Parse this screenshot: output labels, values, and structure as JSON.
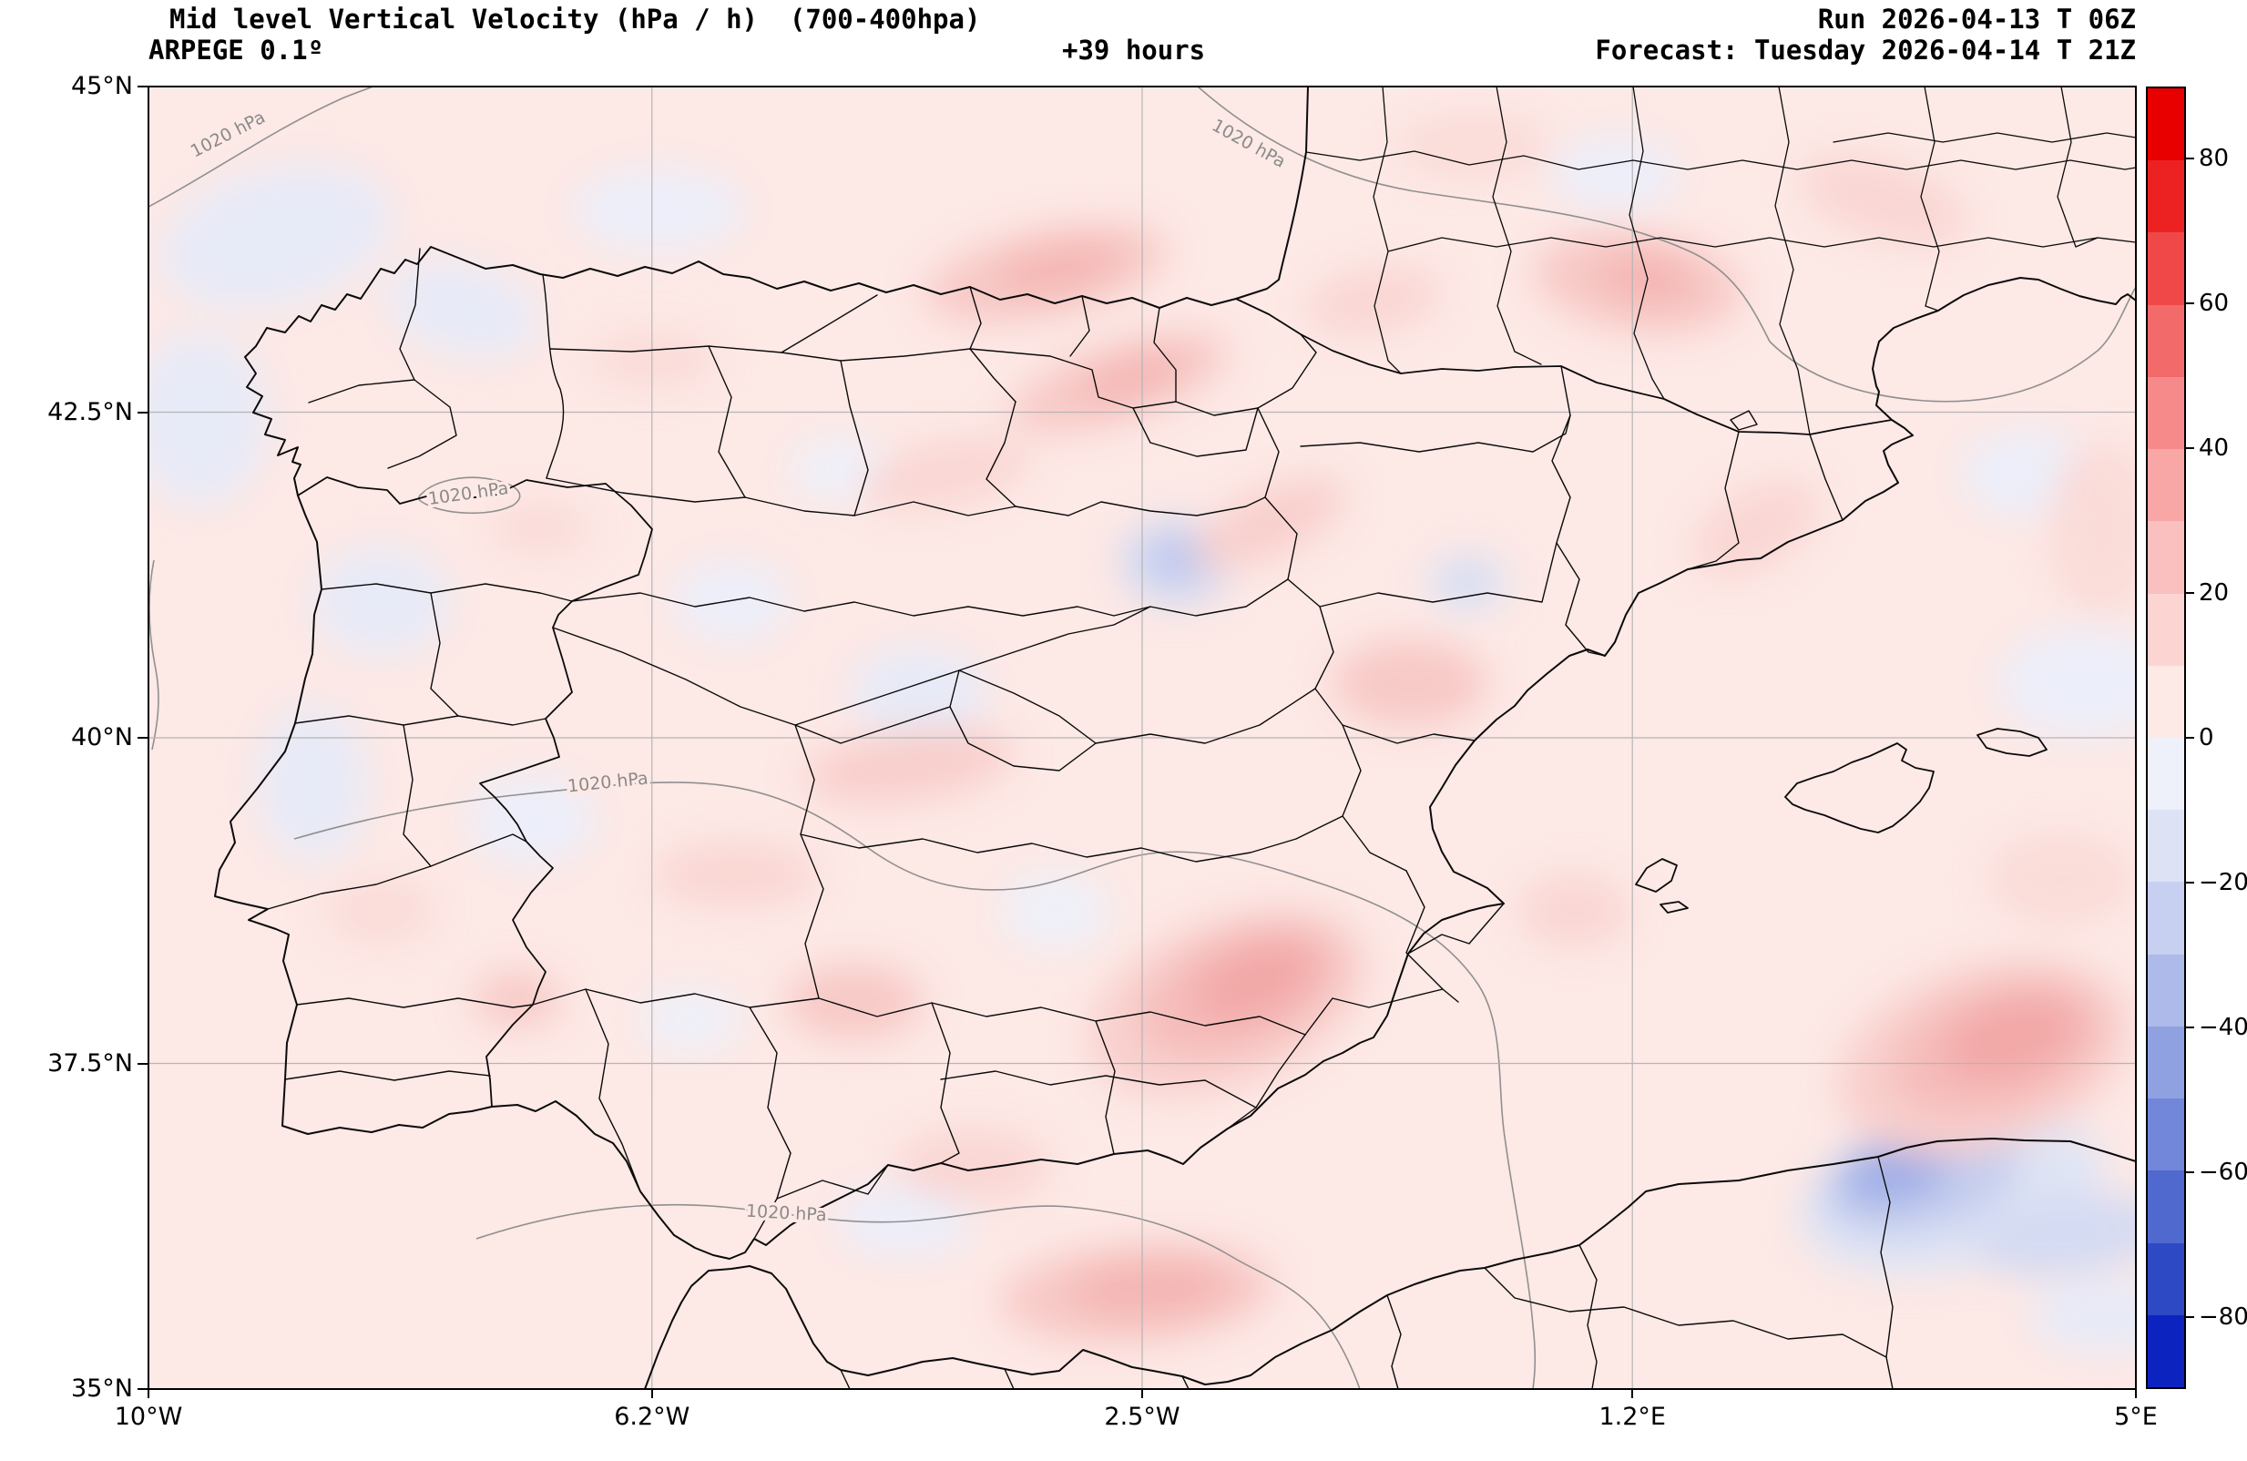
{
  "header": {
    "title_line1": "Mid level Vertical Velocity (hPa / h)  (700-400hpa)",
    "model_line": "ARPEGE 0.1º",
    "hours_line": "+39 hours",
    "run_line": "Run 2026-04-13 T 06Z",
    "forecast_line": "Forecast: Tuesday 2026-04-14 T 21Z"
  },
  "axes": {
    "lon_range": [
      -10,
      5
    ],
    "lat_range": [
      35,
      45
    ],
    "x_ticks": [
      {
        "label": "10°W",
        "lon": -10
      },
      {
        "label": "6.2°W",
        "lon": -6.2
      },
      {
        "label": "2.5°W",
        "lon": -2.5
      },
      {
        "label": "1.2°E",
        "lon": 1.2
      },
      {
        "label": "5°E",
        "lon": 5
      }
    ],
    "y_ticks": [
      {
        "label": "45°N",
        "lat": 45
      },
      {
        "label": "42.5°N",
        "lat": 42.5
      },
      {
        "label": "40°N",
        "lat": 40
      },
      {
        "label": "37.5°N",
        "lat": 37.5
      },
      {
        "label": "35°N",
        "lat": 35
      }
    ]
  },
  "colorbar": {
    "unit": "hPa / h",
    "vmax": 90,
    "vmin": -90,
    "tick_values": [
      80,
      60,
      40,
      20,
      0,
      -20,
      -40,
      -60,
      -80
    ],
    "tick_labels": [
      "80",
      "60",
      "40",
      "20",
      "0",
      "−20",
      "−40",
      "−60",
      "−80"
    ],
    "segment_colors": [
      "#e80000",
      "#ec2222",
      "#f04848",
      "#f36a6a",
      "#f68a8a",
      "#f8a6a6",
      "#fabfbf",
      "#fcd5d3",
      "#fde9e6",
      "#eef1fa",
      "#dde3f5",
      "#c7d0f0",
      "#adbaea",
      "#90a1e2",
      "#7287d9",
      "#5069ce",
      "#2d49c4",
      "#0d23c0"
    ]
  },
  "map": {
    "isobar_label": "1020 hPa",
    "base_fill": "#fde9e6"
  }
}
